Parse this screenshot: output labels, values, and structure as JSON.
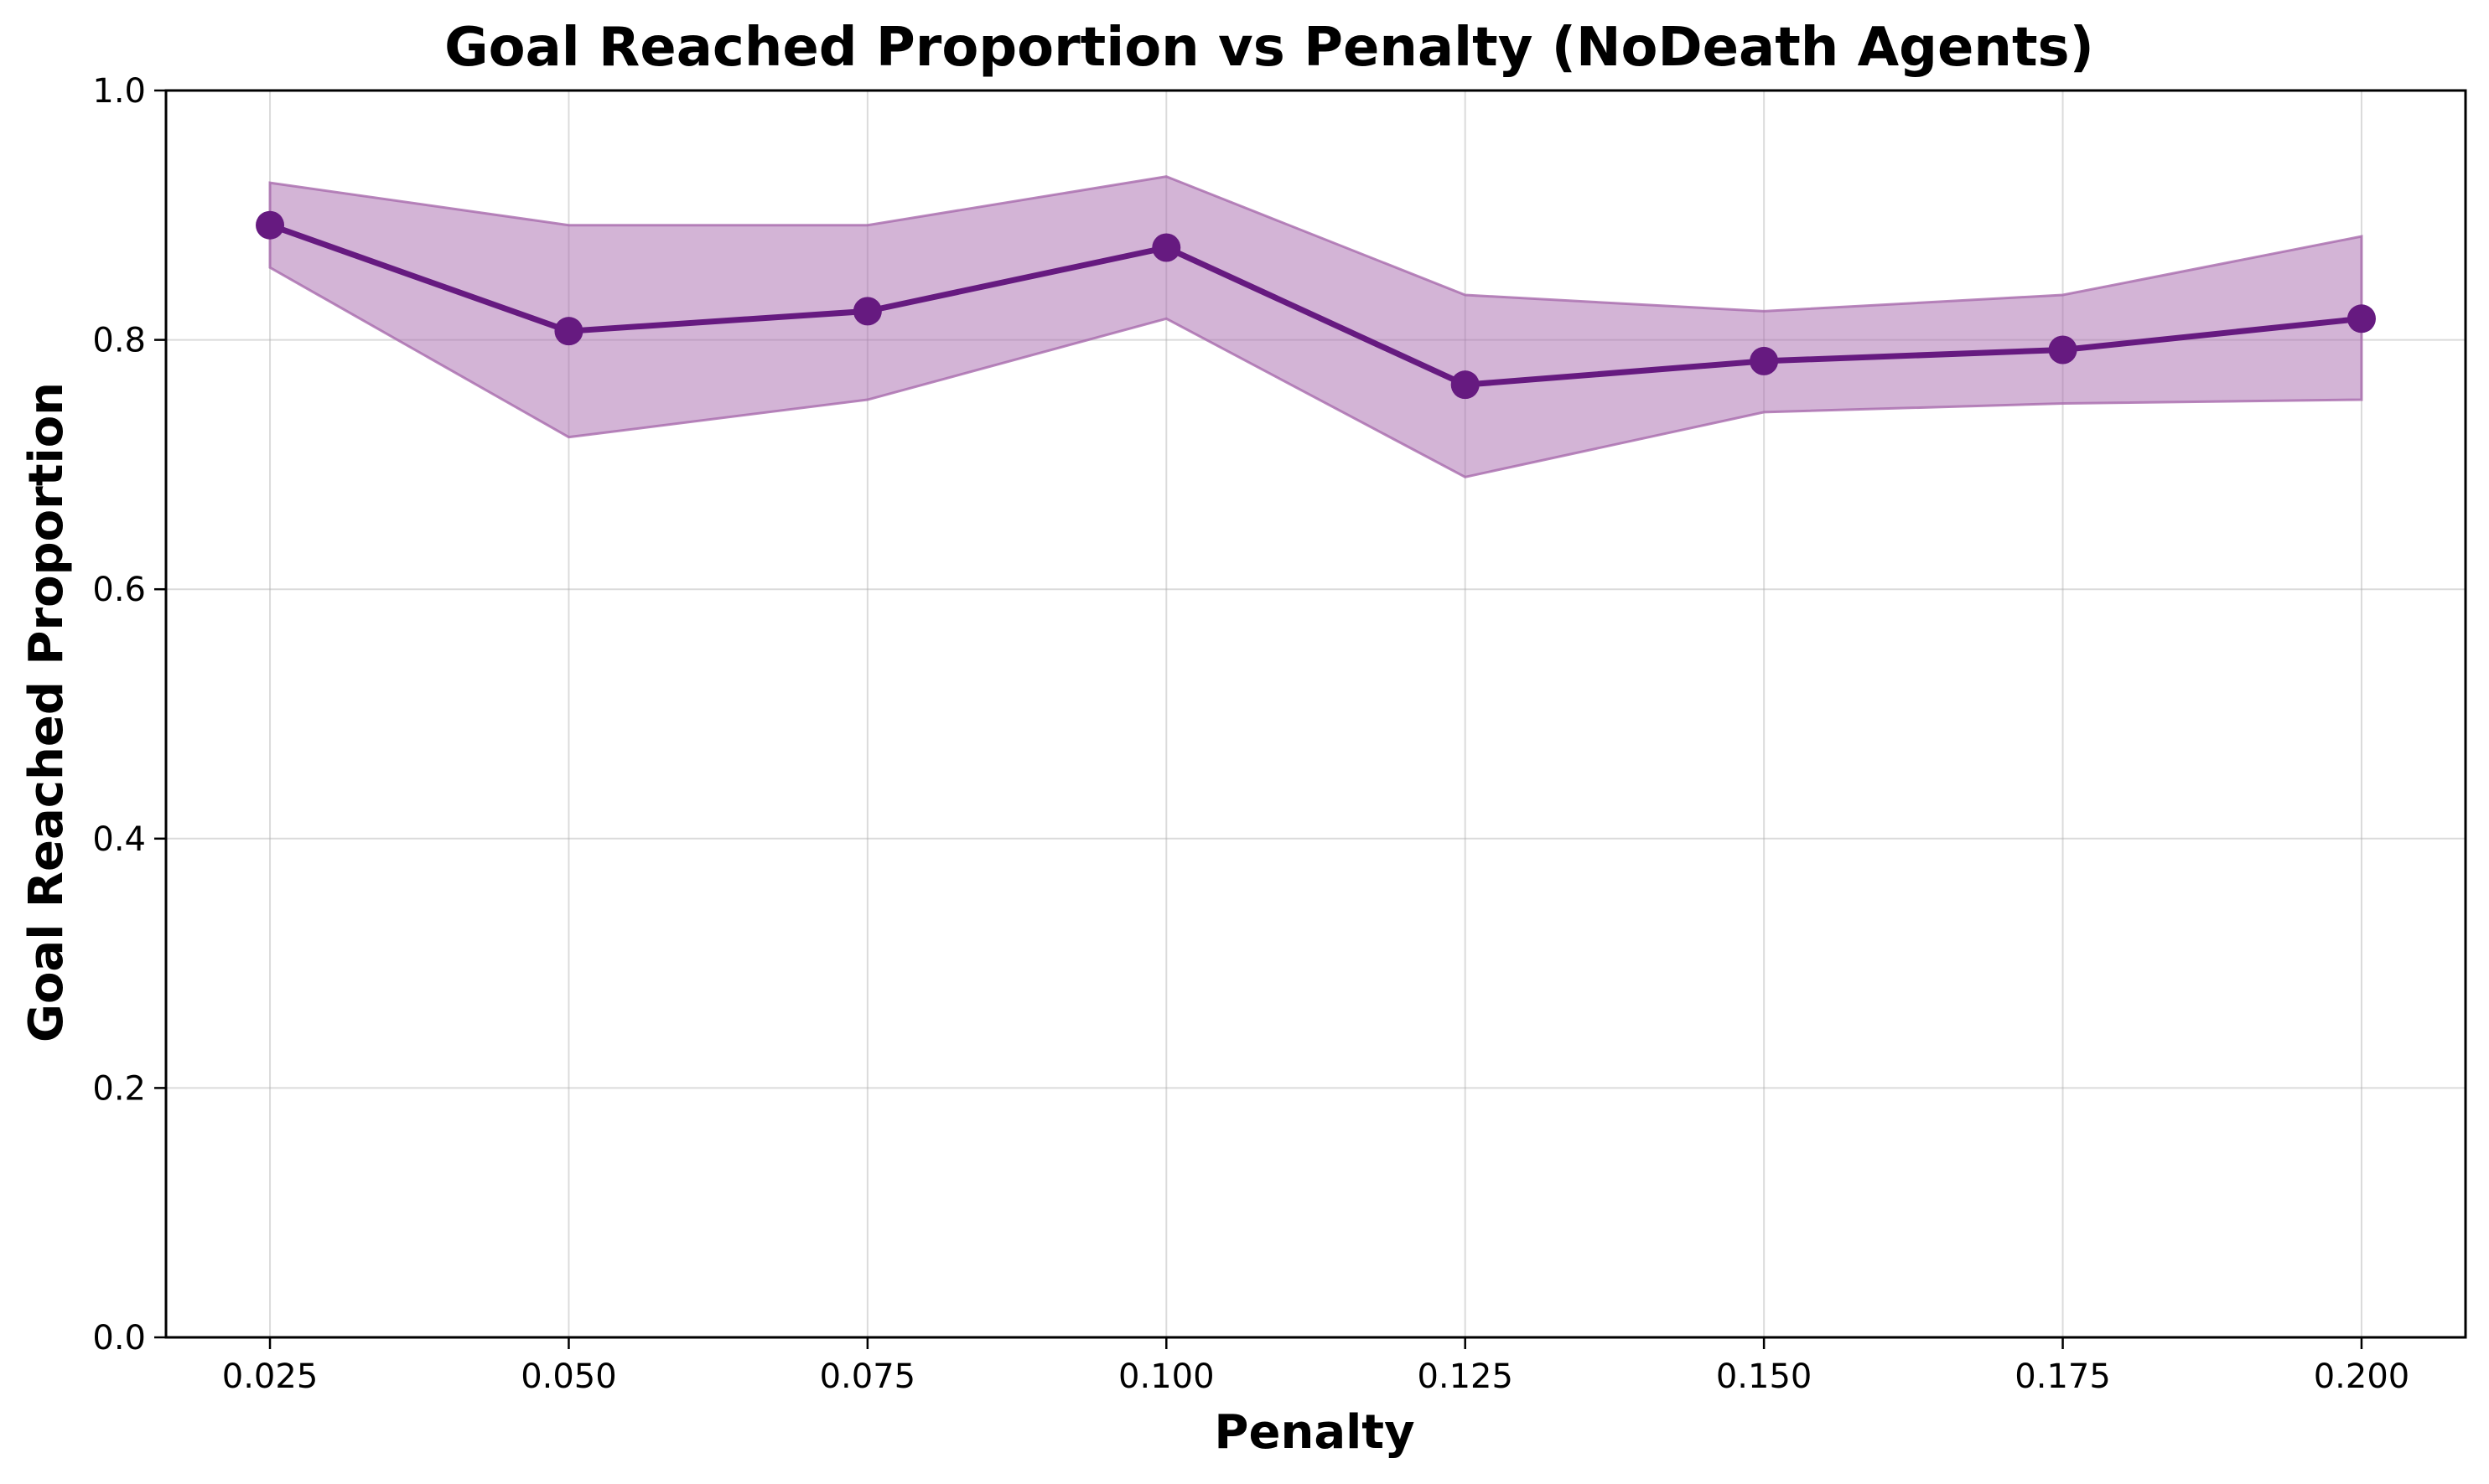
{
  "chart_data": {
    "type": "line",
    "title": "Goal Reached Proportion vs Penalty (NoDeath Agents)",
    "xlabel": "Penalty",
    "ylabel": "Goal Reached Proportion",
    "x": [
      0.025,
      0.05,
      0.075,
      0.1,
      0.125,
      0.15,
      0.175,
      0.2
    ],
    "x_tick_labels": [
      "0.025",
      "0.050",
      "0.075",
      "0.100",
      "0.125",
      "0.150",
      "0.175",
      "0.200"
    ],
    "y_ticks": [
      0.0,
      0.2,
      0.4,
      0.6,
      0.8,
      1.0
    ],
    "y_tick_labels": [
      "0.0",
      "0.2",
      "0.4",
      "0.6",
      "0.8",
      "1.0"
    ],
    "xlim": [
      0.0163,
      0.2087
    ],
    "ylim": [
      0.0,
      1.0
    ],
    "grid": true,
    "series": [
      {
        "values": [
          0.892,
          0.807,
          0.823,
          0.874,
          0.764,
          0.783,
          0.792,
          0.817
        ],
        "band_upper": [
          0.926,
          0.892,
          0.892,
          0.931,
          0.836,
          0.823,
          0.836,
          0.883
        ],
        "band_lower": [
          0.858,
          0.722,
          0.752,
          0.817,
          0.69,
          0.742,
          0.749,
          0.752
        ],
        "color": "#661a80",
        "band_color": "#a86aad"
      }
    ]
  }
}
